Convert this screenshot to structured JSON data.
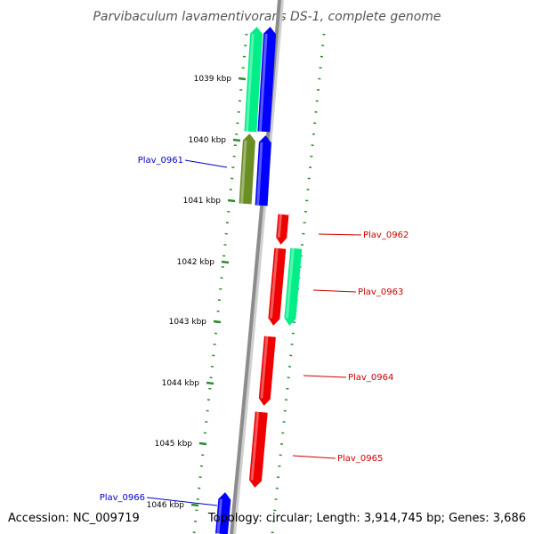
{
  "title": "Parvibaculum lavamentivorans DS-1, complete genome",
  "footer": {
    "accession": "Accession: NC_009719",
    "summary": "Topology: circular; Length: 3,914,745 bp; Genes: 3,686"
  },
  "colors": {
    "backbone": "#8c8c8c",
    "tick": "#2e8b2e",
    "label_forward": "#cc0000",
    "label_reverse": "#0000cc"
  },
  "ruler": [
    "1039 kbp",
    "1040 kbp",
    "1041 kbp",
    "1042 kbp",
    "1043 kbp",
    "1044 kbp",
    "1045 kbp",
    "1046 kbp"
  ],
  "genes": [
    {
      "name": "",
      "strand": "reverse",
      "track": "inner",
      "color": "#0000ff"
    },
    {
      "name": "",
      "strand": "reverse",
      "track": "outer",
      "color": "#00ee88"
    },
    {
      "name": "Plav_0961",
      "strand": "reverse",
      "track": "inner",
      "color": "#0000ff"
    },
    {
      "name": "",
      "strand": "reverse",
      "track": "outer",
      "color": "#6b8e23"
    },
    {
      "name": "Plav_0962",
      "strand": "forward",
      "track": "inner",
      "color": "#ee0000"
    },
    {
      "name": "Plav_0963",
      "strand": "forward",
      "track": "inner",
      "color": "#ee0000"
    },
    {
      "name": "",
      "strand": "forward",
      "track": "outer",
      "color": "#00ee88"
    },
    {
      "name": "Plav_0964",
      "strand": "forward",
      "track": "inner",
      "color": "#ee0000"
    },
    {
      "name": "Plav_0965",
      "strand": "forward",
      "track": "inner",
      "color": "#ee0000"
    },
    {
      "name": "Plav_0966",
      "strand": "reverse",
      "track": "inner",
      "color": "#0000ff"
    }
  ]
}
